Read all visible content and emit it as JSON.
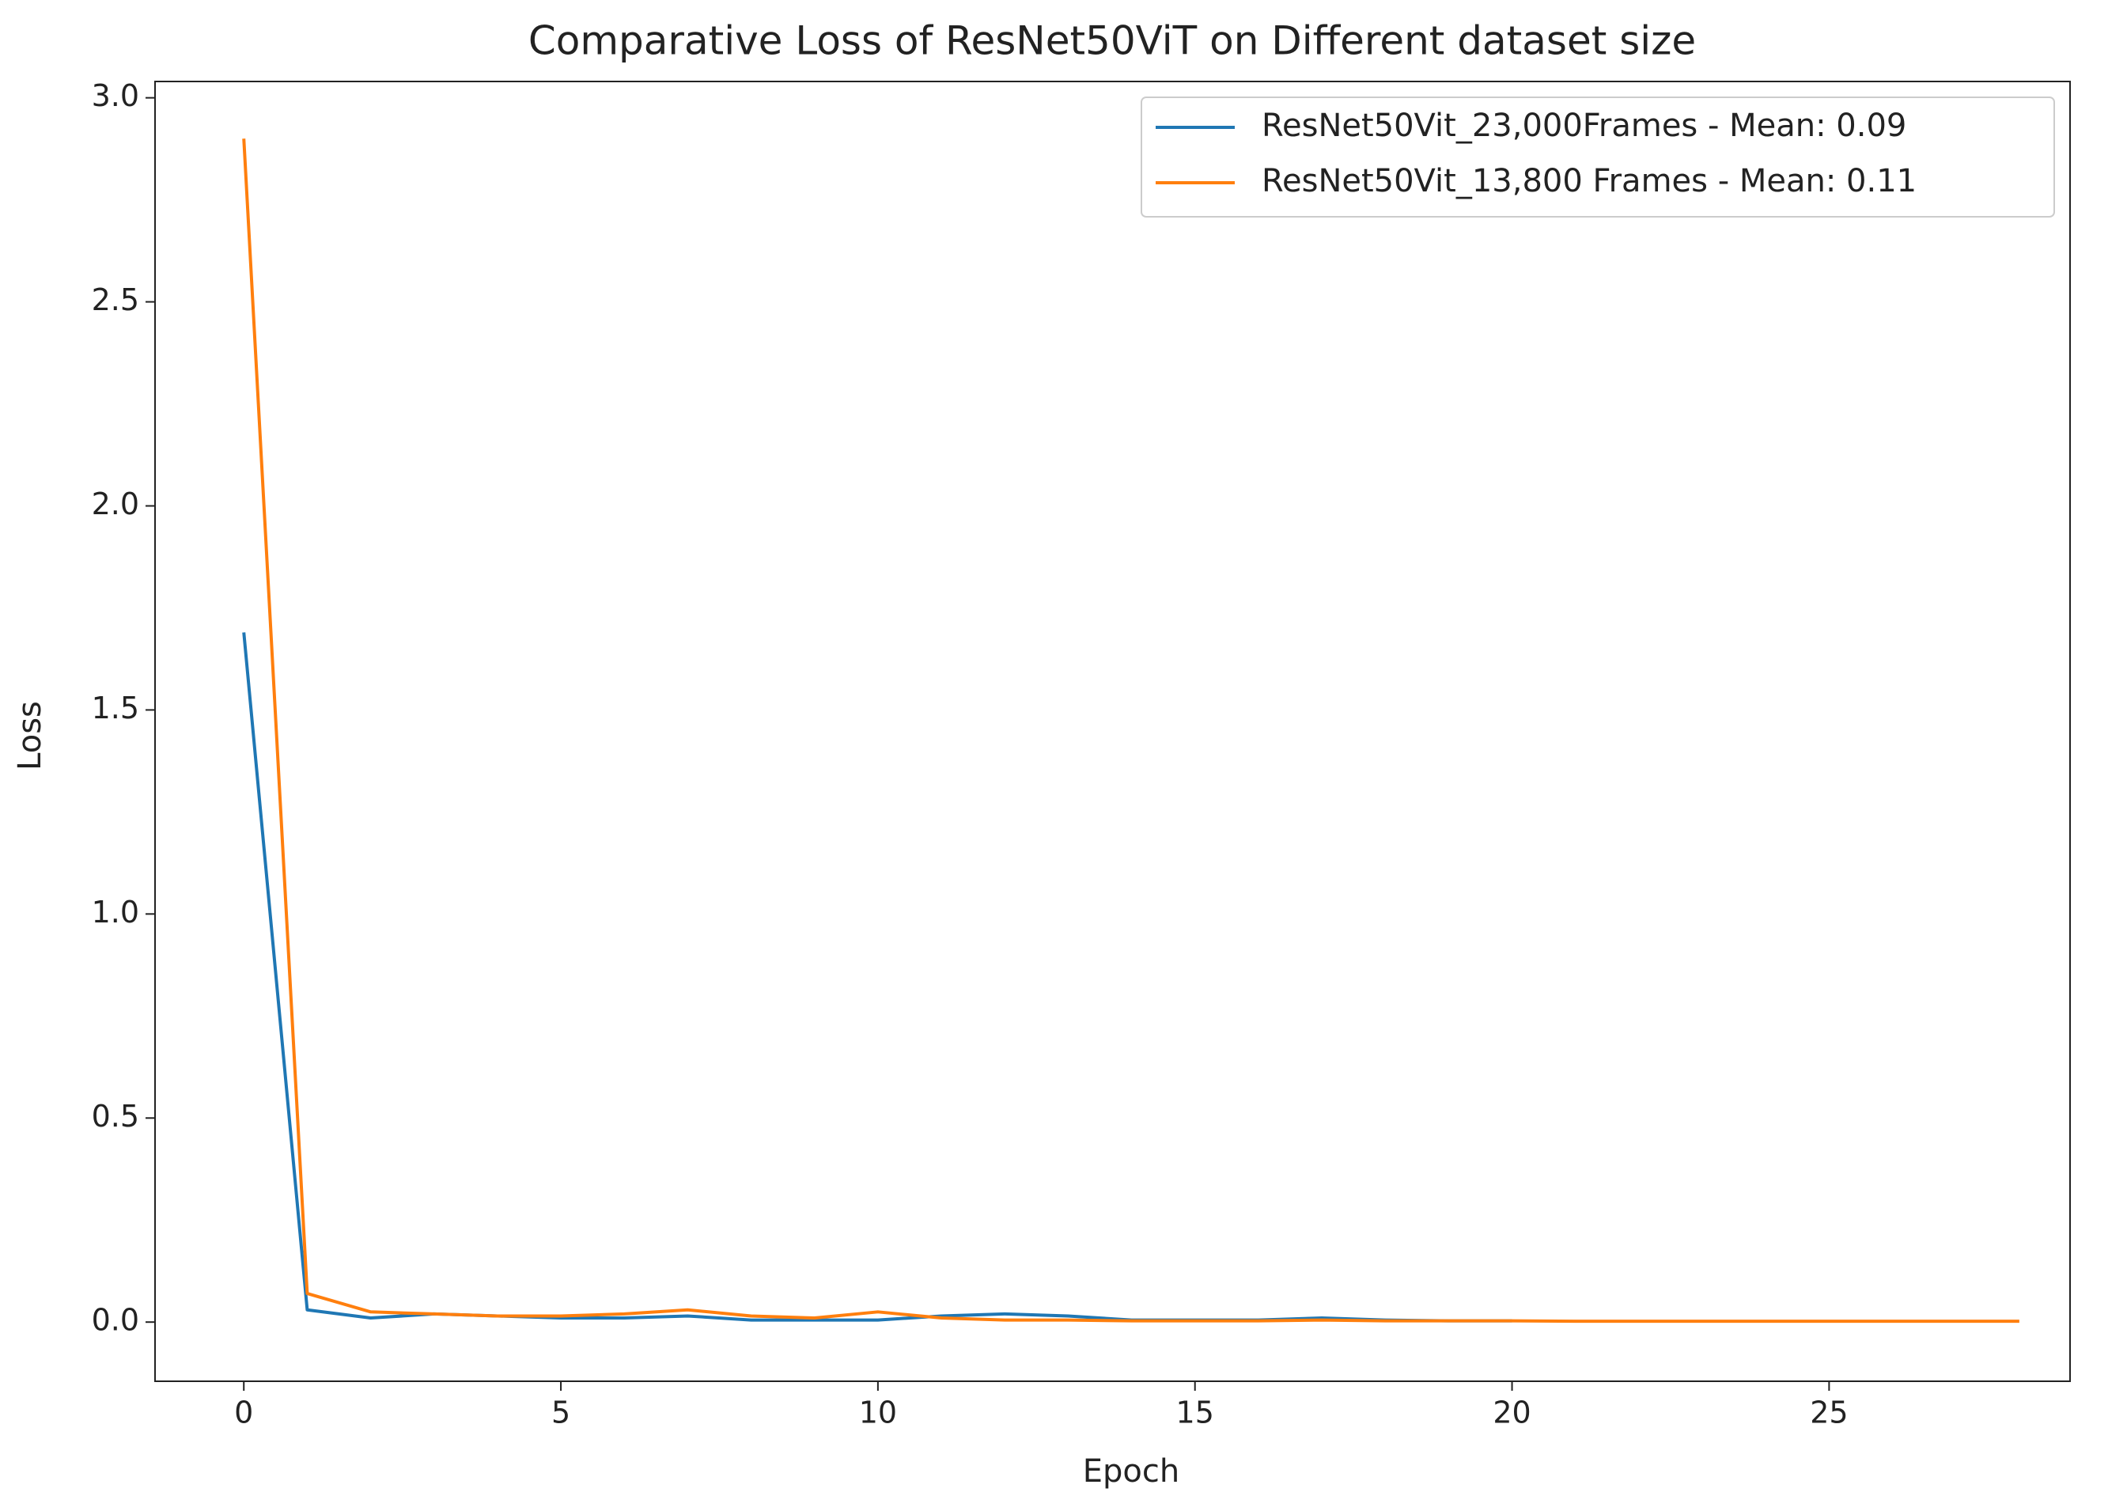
{
  "chart_data": {
    "type": "line",
    "title": "Comparative Loss of ResNet50ViT on Different dataset size",
    "x_label": "Epoch",
    "y_label": "Loss",
    "x": [
      0,
      1,
      2,
      3,
      4,
      5,
      6,
      7,
      8,
      9,
      10,
      11,
      12,
      13,
      14,
      15,
      16,
      17,
      18,
      19,
      20,
      21,
      22,
      23,
      24,
      25,
      26,
      27,
      28
    ],
    "series": [
      {
        "name": "ResNet50Vit_23,000Frames - Mean: 0.09",
        "color": "#1f77b4",
        "values": [
          1.69,
          0.03,
          0.01,
          0.02,
          0.015,
          0.01,
          0.01,
          0.015,
          0.005,
          0.005,
          0.005,
          0.015,
          0.02,
          0.015,
          0.005,
          0.005,
          0.005,
          0.01,
          0.005,
          0.003,
          0.003,
          null,
          null,
          null,
          null,
          null,
          null,
          null,
          null
        ]
      },
      {
        "name": "ResNet50Vit_13,800 Frames - Mean: 0.11",
        "color": "#ff7f0e",
        "values": [
          2.9,
          0.07,
          0.025,
          0.02,
          0.015,
          0.015,
          0.02,
          0.03,
          0.015,
          0.01,
          0.025,
          0.01,
          0.005,
          0.005,
          0.003,
          0.003,
          0.003,
          0.005,
          0.003,
          0.003,
          0.003,
          0.002,
          0.002,
          0.002,
          0.002,
          0.002,
          0.002,
          0.002,
          0.002
        ]
      }
    ],
    "xlim": [
      -1.4,
      28.8
    ],
    "xticks": [
      0,
      5,
      10,
      15,
      20,
      25
    ],
    "ylim": [
      -0.145,
      3.04
    ],
    "yticks": [
      {
        "value": 0,
        "label": "0.0"
      },
      {
        "value": 0.5,
        "label": "0.5"
      },
      {
        "value": 1,
        "label": "1.0"
      },
      {
        "value": 1.5,
        "label": "1.5"
      },
      {
        "value": 2,
        "label": "2.0"
      },
      {
        "value": 2.5,
        "label": "2.5"
      },
      {
        "value": 3,
        "label": "3.0"
      }
    ],
    "legend": "upper right",
    "grid": false
  }
}
